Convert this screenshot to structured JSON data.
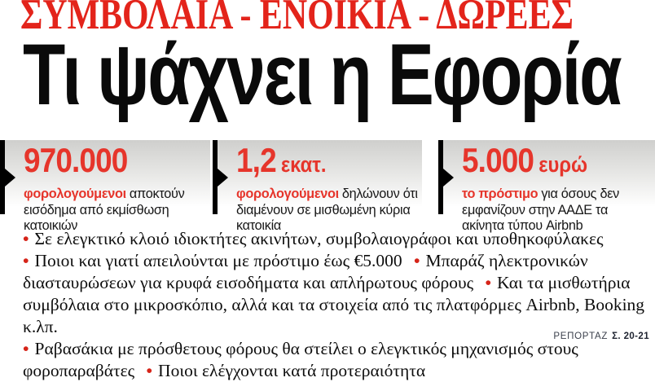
{
  "colors": {
    "kicker_red": "#e3241b",
    "stat_red": "#e6352b",
    "bullet_red": "#d62419",
    "headline_black": "#0a0a0a",
    "panel_gradient_top": "#cfcfcd"
  },
  "kicker": {
    "text": "ΣΥΜΒΟΛΑΙΑ - ΕΝΟΙΚΙΑ - ΔΩΡΕΕΣ"
  },
  "headline": {
    "text": "Τι ψάχνει η Εφορία"
  },
  "stats": [
    {
      "number": "970.000",
      "unit": "",
      "lead": "φορολογούμενοι",
      "rest": "αποκτούν εισόδημα από εκμίσθωση κατοικιών"
    },
    {
      "number": "1,2",
      "unit": "εκατ.",
      "lead": "φορολογούμενοι",
      "rest": "δηλώνουν ότι διαμένουν σε μισθωμένη κύρια κατοικία"
    },
    {
      "number": "5.000",
      "unit": "ευρώ",
      "lead": "το πρόστιμο",
      "rest": "για όσους δεν εμφανίζουν στην ΑΑΔΕ τα ακίνητα τύπου Airbnb"
    }
  ],
  "deck": {
    "bullet_glyph": "•",
    "paragraphs": [
      {
        "segments": [
          {
            "bullet": true,
            "text": "Σε ελεγκτικό κλοιό ιδιοκτήτες ακινήτων, συμβολαιογράφοι και υποθηκοφύλακες"
          }
        ]
      },
      {
        "segments": [
          {
            "bullet": true,
            "text": "Ποιοι και γιατί απειλούνται με πρόστιμο έως €5.000"
          },
          {
            "bullet": true,
            "text": "Μπαράζ ηλεκτρονικών διασταυρώσεων για κρυφά εισοδήματα και απλήρωτους φόρους"
          },
          {
            "bullet": true,
            "text": "Και τα μισθωτήρια συμβόλαια στο μικροσκόπιο, αλλά και τα στοιχεία από τις πλατφόρμες Airbnb, Booking κ.λπ."
          }
        ]
      },
      {
        "segments": [
          {
            "bullet": true,
            "text": "Ραβασάκια με πρόσθετους φόρους θα στείλει ο ελεγκτικός μηχανισμός στους φοροπαραβάτες"
          },
          {
            "bullet": true,
            "text": "Ποιοι ελέγχονται κατά προτεραιότητα"
          }
        ]
      }
    ]
  },
  "report": {
    "label": "ΡΕΠΟΡΤΑΖ",
    "pages": "Σ. 20-21"
  }
}
